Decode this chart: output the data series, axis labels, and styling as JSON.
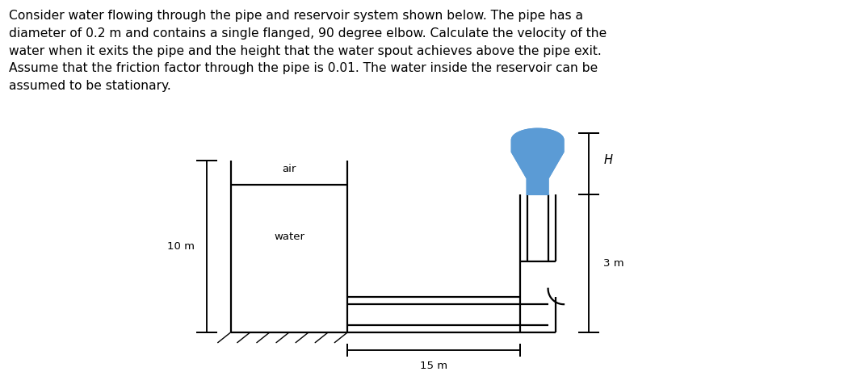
{
  "title_text": "Consider water flowing through the pipe and reservoir system shown below. The pipe has a\ndiameter of 0.2 m and contains a single flanged, 90 degree elbow. Calculate the velocity of the\nwater when it exits the pipe and the height that the water spout achieves above the pipe exit.\nAssume that the friction factor through the pipe is 0.01. The water inside the reservoir can be\nassumed to be stationary.",
  "label_air": "air",
  "label_water": "water",
  "label_10m": "10 m",
  "label_15m": "15 m",
  "label_H": "H",
  "label_3m": "3 m",
  "bg_color": "#ffffff",
  "line_color": "#000000",
  "water_color": "#5b9bd5",
  "fig_width": 10.5,
  "fig_height": 4.71,
  "text_fontsize": 11.2,
  "label_fontsize": 9.5,
  "lw": 1.6
}
